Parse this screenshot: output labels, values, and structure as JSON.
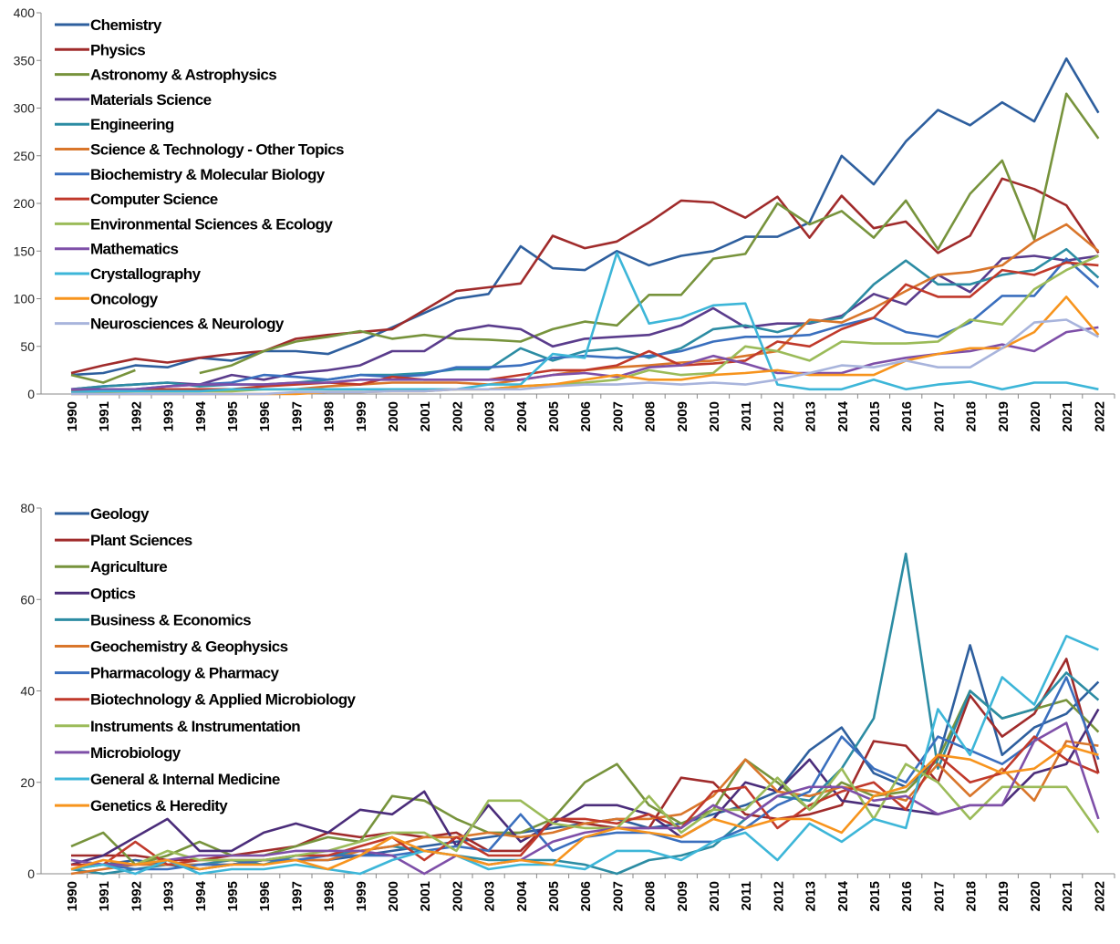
{
  "charts": [
    {
      "chart_data": {
        "type": "line",
        "legend": "upper left",
        "ylim": [
          0,
          400
        ],
        "yticks": [
          0,
          50,
          100,
          150,
          200,
          250,
          300,
          350,
          400
        ],
        "categories": [
          "1990",
          "1991",
          "1992",
          "1993",
          "1994",
          "1995",
          "1996",
          "1997",
          "1998",
          "1999",
          "2000",
          "2001",
          "2002",
          "2003",
          "2004",
          "2005",
          "2006",
          "2007",
          "2008",
          "2009",
          "2010",
          "2011",
          "2012",
          "2013",
          "2014",
          "2015",
          "2016",
          "2017",
          "2018",
          "2019",
          "2020",
          "2021",
          "2022"
        ],
        "series": [
          {
            "name": "Chemistry",
            "color": "#2e5f9e",
            "values": [
              20,
              22,
              30,
              28,
              38,
              35,
              45,
              45,
              42,
              55,
              70,
              85,
              100,
              105,
              155,
              132,
              130,
              150,
              135,
              145,
              150,
              165,
              165,
              180,
              250,
              220,
              265,
              298,
              282,
              306,
              286,
              352,
              295
            ]
          },
          {
            "name": "Physics",
            "color": "#a02b2b",
            "values": [
              22,
              30,
              37,
              33,
              38,
              42,
              45,
              58,
              62,
              65,
              68,
              88,
              108,
              112,
              116,
              166,
              153,
              160,
              180,
              203,
              201,
              185,
              207,
              164,
              208,
              174,
              181,
              148,
              166,
              226,
              215,
              198,
              148
            ]
          },
          {
            "name": "Astronomy & Astrophysics",
            "color": "#77933c",
            "values": [
              20,
              12,
              25,
              null,
              22,
              30,
              45,
              55,
              60,
              66,
              58,
              62,
              58,
              57,
              55,
              68,
              76,
              72,
              104,
              104,
              142,
              147,
              200,
              178,
              192,
              164,
              203,
              152,
              210,
              245,
              162,
              315,
              268
            ]
          },
          {
            "name": "Materials Science",
            "color": "#5a3c8c",
            "values": [
              5,
              8,
              10,
              12,
              10,
              20,
              15,
              22,
              25,
              30,
              45,
              45,
              66,
              72,
              68,
              50,
              58,
              60,
              62,
              72,
              90,
              70,
              74,
              74,
              82,
              105,
              94,
              125,
              107,
              142,
              145,
              140,
              145
            ]
          },
          {
            "name": "Engineering",
            "color": "#2c8ca3",
            "values": [
              5,
              8,
              10,
              12,
              8,
              10,
              10,
              12,
              15,
              20,
              20,
              22,
              26,
              26,
              48,
              35,
              45,
              48,
              38,
              48,
              68,
              72,
              65,
              75,
              80,
              115,
              140,
              115,
              115,
              125,
              130,
              152,
              122
            ]
          },
          {
            "name": "Science & Technology - Other Topics",
            "color": "#d9762b",
            "values": [
              2,
              3,
              5,
              5,
              5,
              5,
              5,
              5,
              8,
              10,
              12,
              12,
              12,
              10,
              15,
              20,
              25,
              28,
              30,
              33,
              35,
              40,
              45,
              78,
              75,
              90,
              108,
              125,
              128,
              135,
              160,
              178,
              150
            ]
          },
          {
            "name": "Biochemistry & Molecular Biology",
            "color": "#3a6fbe",
            "values": [
              5,
              5,
              5,
              8,
              10,
              12,
              20,
              18,
              15,
              20,
              18,
              20,
              28,
              28,
              30,
              38,
              40,
              38,
              40,
              45,
              55,
              60,
              60,
              62,
              72,
              80,
              65,
              60,
              75,
              103,
              103,
              142,
              112
            ]
          },
          {
            "name": "Computer Science",
            "color": "#c0392b",
            "values": [
              3,
              3,
              5,
              5,
              5,
              5,
              8,
              10,
              12,
              10,
              18,
              15,
              15,
              15,
              20,
              25,
              25,
              30,
              45,
              30,
              32,
              35,
              55,
              50,
              68,
              80,
              115,
              102,
              102,
              130,
              125,
              138,
              135
            ]
          },
          {
            "name": "Environmental Sciences & Ecology",
            "color": "#9bbb59",
            "values": [
              2,
              2,
              3,
              3,
              3,
              3,
              5,
              5,
              5,
              5,
              5,
              5,
              5,
              5,
              8,
              10,
              12,
              15,
              25,
              20,
              22,
              50,
              45,
              35,
              55,
              53,
              53,
              55,
              78,
              73,
              110,
              130,
              145
            ]
          },
          {
            "name": "Mathematics",
            "color": "#7e4fa8",
            "values": [
              5,
              5,
              5,
              8,
              10,
              10,
              10,
              12,
              12,
              15,
              15,
              15,
              15,
              15,
              15,
              20,
              22,
              18,
              28,
              30,
              40,
              32,
              22,
              22,
              22,
              32,
              38,
              42,
              45,
              52,
              45,
              65,
              70
            ]
          },
          {
            "name": "Crystallography",
            "color": "#3db6d8",
            "values": [
              2,
              3,
              3,
              3,
              3,
              5,
              5,
              5,
              5,
              5,
              5,
              5,
              5,
              10,
              10,
              42,
              38,
              148,
              74,
              80,
              93,
              95,
              10,
              5,
              5,
              15,
              5,
              10,
              13,
              5,
              12,
              12,
              5
            ]
          },
          {
            "name": "Oncology",
            "color": "#f7941d",
            "values": [
              0,
              0,
              0,
              0,
              0,
              0,
              0,
              0,
              2,
              2,
              3,
              3,
              5,
              5,
              8,
              10,
              15,
              20,
              15,
              15,
              20,
              22,
              25,
              20,
              20,
              20,
              35,
              42,
              48,
              48,
              65,
              102,
              62
            ]
          },
          {
            "name": "Neurosciences & Neurology",
            "color": "#a8b4dc",
            "values": [
              0,
              0,
              0,
              0,
              0,
              0,
              0,
              2,
              2,
              2,
              3,
              3,
              5,
              5,
              5,
              8,
              10,
              10,
              12,
              10,
              12,
              10,
              15,
              22,
              30,
              28,
              35,
              28,
              28,
              48,
              75,
              78,
              60
            ]
          }
        ]
      }
    },
    {
      "chart_data": {
        "type": "line",
        "legend": "upper left",
        "ylim": [
          0,
          80
        ],
        "yticks": [
          0,
          20,
          40,
          60,
          80
        ],
        "categories": [
          "1990",
          "1991",
          "1992",
          "1993",
          "1994",
          "1995",
          "1996",
          "1997",
          "1998",
          "1999",
          "2000",
          "2001",
          "2002",
          "2003",
          "2004",
          "2005",
          "2006",
          "2007",
          "2008",
          "2009",
          "2010",
          "2011",
          "2012",
          "2013",
          "2014",
          "2015",
          "2016",
          "2017",
          "2018",
          "2019",
          "2020",
          "2021",
          "2022"
        ],
        "series": [
          {
            "name": "Geology",
            "color": "#2e5f9e",
            "values": [
              3,
              2,
              3,
              2,
              1,
              2,
              3,
              3,
              3,
              4,
              5,
              6,
              7,
              8,
              9,
              10,
              11,
              12,
              10,
              11,
              13,
              15,
              18,
              27,
              32,
              22,
              19,
              25,
              50,
              26,
              32,
              35,
              42
            ]
          },
          {
            "name": "Plant Sciences",
            "color": "#a02b2b",
            "values": [
              4,
              4,
              4,
              3,
              3,
              4,
              5,
              6,
              9,
              8,
              9,
              8,
              9,
              5,
              5,
              12,
              11,
              10,
              10,
              21,
              20,
              13,
              12,
              13,
              15,
              29,
              28,
              20,
              39,
              30,
              35,
              47,
              22
            ]
          },
          {
            "name": "Agriculture",
            "color": "#77933c",
            "values": [
              6,
              9,
              2,
              4,
              7,
              4,
              4,
              6,
              8,
              7,
              17,
              16,
              12,
              9,
              9,
              12,
              20,
              24,
              15,
              11,
              14,
              25,
              20,
              14,
              20,
              17,
              18,
              25,
              40,
              34,
              36,
              38,
              31
            ]
          },
          {
            "name": "Optics",
            "color": "#4b2d7a",
            "values": [
              2,
              4,
              8,
              12,
              5,
              5,
              9,
              11,
              9,
              14,
              13,
              18,
              6,
              15,
              7,
              11,
              15,
              15,
              13,
              8,
              12,
              20,
              18,
              25,
              16,
              15,
              14,
              13,
              15,
              15,
              22,
              24,
              36
            ]
          },
          {
            "name": "Business & Economics",
            "color": "#2c8ca3",
            "values": [
              1,
              0,
              1,
              2,
              2,
              3,
              2,
              4,
              4,
              5,
              6,
              5,
              4,
              3,
              3,
              3,
              2,
              0,
              3,
              4,
              6,
              12,
              17,
              16,
              23,
              34,
              70,
              23,
              40,
              34,
              36,
              44,
              38
            ]
          },
          {
            "name": "Geochemistry & Geophysics",
            "color": "#d9762b",
            "values": [
              0,
              1,
              2,
              2,
              2,
              2,
              3,
              3,
              3,
              5,
              6,
              8,
              8,
              9,
              8,
              9,
              11,
              12,
              12,
              13,
              17,
              25,
              18,
              17,
              19,
              18,
              16,
              24,
              17,
              23,
              16,
              29,
              28
            ]
          },
          {
            "name": "Pharmacology & Pharmacy",
            "color": "#3a6fbe",
            "values": [
              1,
              2,
              1,
              1,
              2,
              2,
              3,
              3,
              4,
              4,
              4,
              5,
              6,
              5,
              13,
              5,
              8,
              9,
              9,
              7,
              7,
              10,
              15,
              18,
              30,
              23,
              20,
              30,
              27,
              24,
              29,
              43,
              25
            ]
          },
          {
            "name": "Biotechnology & Applied Microbiology",
            "color": "#c0392b",
            "values": [
              2,
              2,
              7,
              2,
              3,
              3,
              3,
              4,
              4,
              6,
              8,
              3,
              8,
              4,
              4,
              12,
              12,
              11,
              13,
              10,
              18,
              19,
              10,
              15,
              18,
              20,
              14,
              26,
              20,
              22,
              30,
              25,
              22
            ]
          },
          {
            "name": "Instruments & Instrumentation",
            "color": "#9bbb59",
            "values": [
              1,
              2,
              2,
              5,
              3,
              3,
              3,
              4,
              5,
              7,
              9,
              9,
              5,
              16,
              16,
              11,
              10,
              10,
              17,
              9,
              14,
              14,
              21,
              14,
              23,
              12,
              24,
              20,
              12,
              19,
              19,
              19,
              9
            ]
          },
          {
            "name": "Microbiology",
            "color": "#7e4fa8",
            "values": [
              3,
              2,
              2,
              3,
              4,
              4,
              4,
              5,
              5,
              5,
              4,
              0,
              4,
              2,
              3,
              7,
              9,
              10,
              10,
              10,
              15,
              12,
              17,
              19,
              19,
              16,
              17,
              13,
              15,
              15,
              29,
              33,
              12
            ]
          },
          {
            "name": "General & Internal Medicine",
            "color": "#3db6d8",
            "values": [
              1,
              2,
              0,
              3,
              0,
              1,
              1,
              2,
              1,
              0,
              3,
              5,
              4,
              1,
              2,
              2,
              1,
              5,
              5,
              3,
              7,
              9,
              3,
              11,
              7,
              12,
              10,
              36,
              26,
              43,
              37,
              52,
              49
            ]
          },
          {
            "name": "Genetics & Heredity",
            "color": "#f7941d",
            "values": [
              1,
              3,
              2,
              3,
              1,
              2,
              2,
              3,
              1,
              4,
              8,
              5,
              4,
              2,
              3,
              2,
              8,
              10,
              9,
              8,
              12,
              10,
              12,
              12,
              9,
              17,
              19,
              26,
              25,
              22,
              23,
              28,
              26
            ]
          }
        ]
      }
    }
  ]
}
